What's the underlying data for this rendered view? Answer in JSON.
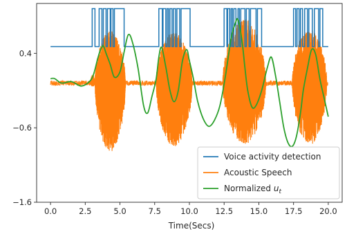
{
  "chart_data": {
    "type": "line",
    "title": "",
    "xlabel": "Time(Secs)",
    "ylabel": "",
    "xlim": [
      -1.0,
      21.0
    ],
    "ylim": [
      -1.6,
      1.07
    ],
    "x_ticks": [
      0.0,
      2.5,
      5.0,
      7.5,
      10.0,
      12.5,
      15.0,
      17.5,
      20.0
    ],
    "x_tick_labels": [
      "0.0",
      "2.5",
      "5.0",
      "7.5",
      "10.0",
      "12.5",
      "15.0",
      "17.5",
      "20.0"
    ],
    "y_ticks": [
      0.4,
      -0.6,
      -1.6
    ],
    "y_tick_labels": [
      "0.4",
      "−0.6",
      "−1.6"
    ],
    "grid": false,
    "legend_position": "lower-right",
    "legend": [
      {
        "label": "Voice activity detection",
        "color": "#1f77b4"
      },
      {
        "label": "Acoustic Speech",
        "color": "#ff7f0e"
      },
      {
        "label": "Normalized ",
        "subscript_var": "u",
        "subscript": "t",
        "color": "#2ca02c"
      }
    ],
    "series": [
      {
        "name": "Voice activity detection",
        "color": "#1f77b4",
        "low": 0.49,
        "high": 1.0,
        "active_intervals": [
          [
            3.0,
            3.2
          ],
          [
            3.5,
            3.7
          ],
          [
            3.8,
            4.0
          ],
          [
            4.1,
            4.3
          ],
          [
            4.35,
            4.5
          ],
          [
            4.6,
            5.3
          ],
          [
            7.8,
            8.05
          ],
          [
            8.1,
            8.3
          ],
          [
            8.4,
            8.5
          ],
          [
            8.6,
            8.75
          ],
          [
            8.85,
            9.0
          ],
          [
            9.1,
            9.3
          ],
          [
            9.4,
            10.05
          ],
          [
            12.5,
            12.7
          ],
          [
            12.75,
            12.9
          ],
          [
            13.0,
            13.1
          ],
          [
            13.2,
            13.35
          ],
          [
            13.5,
            13.6
          ],
          [
            13.7,
            14.0
          ],
          [
            14.1,
            14.3
          ],
          [
            14.4,
            14.8
          ],
          [
            14.9,
            15.2
          ],
          [
            17.5,
            17.65
          ],
          [
            17.75,
            17.9
          ],
          [
            18.0,
            18.15
          ],
          [
            18.3,
            18.5
          ],
          [
            18.6,
            18.85
          ],
          [
            19.0,
            19.3
          ],
          [
            19.4,
            19.6
          ]
        ]
      },
      {
        "name": "Acoustic Speech",
        "color": "#ff7f0e",
        "baseline": 0.0,
        "segments": [
          {
            "x": [
              2.85,
              3.2
            ],
            "min": -0.05,
            "max": 0.12
          },
          {
            "x": [
              3.2,
              5.4
            ],
            "min": -0.92,
            "max": 0.7
          },
          {
            "x": [
              7.6,
              10.2
            ],
            "min": -0.85,
            "max": 0.68
          },
          {
            "x": [
              12.4,
              15.5
            ],
            "min": -0.82,
            "max": 0.86
          },
          {
            "x": [
              17.4,
              19.9
            ],
            "min": -0.83,
            "max": 0.72
          }
        ]
      },
      {
        "name": "Normalized ut",
        "color": "#2ca02c",
        "x": [
          0.0,
          0.3,
          0.8,
          1.5,
          2.2,
          2.8,
          3.1,
          3.4,
          3.6,
          3.8,
          4.0,
          4.3,
          4.6,
          5.0,
          5.3,
          5.6,
          5.9,
          6.3,
          6.7,
          7.0,
          7.3,
          7.6,
          7.8,
          8.0,
          8.3,
          8.6,
          8.9,
          9.2,
          9.5,
          9.8,
          10.0,
          10.3,
          10.6,
          11.0,
          11.4,
          11.8,
          12.2,
          12.6,
          13.0,
          13.3,
          13.5,
          13.8,
          14.0,
          14.2,
          14.5,
          14.8,
          15.2,
          15.6,
          15.9,
          16.2,
          16.5,
          16.8,
          17.1,
          17.4,
          17.7,
          18.0,
          18.2,
          18.5,
          18.8,
          19.1,
          19.4,
          19.7,
          20.0
        ],
        "y": [
          0.06,
          0.06,
          0.0,
          0.02,
          -0.04,
          0.02,
          0.12,
          0.33,
          0.45,
          0.5,
          0.4,
          0.25,
          0.08,
          0.15,
          0.42,
          0.65,
          0.55,
          0.2,
          -0.3,
          -0.4,
          -0.18,
          0.05,
          0.35,
          0.48,
          0.22,
          -0.1,
          -0.25,
          -0.1,
          0.3,
          0.45,
          0.3,
          0.05,
          -0.25,
          -0.48,
          -0.58,
          -0.5,
          -0.3,
          0.1,
          0.6,
          0.8,
          0.85,
          0.55,
          0.2,
          -0.1,
          -0.32,
          -0.3,
          -0.1,
          0.2,
          0.35,
          0.1,
          -0.25,
          -0.6,
          -0.8,
          -0.85,
          -0.72,
          -0.4,
          -0.1,
          0.2,
          0.45,
          0.38,
          0.05,
          -0.2,
          -0.45
        ]
      }
    ]
  }
}
